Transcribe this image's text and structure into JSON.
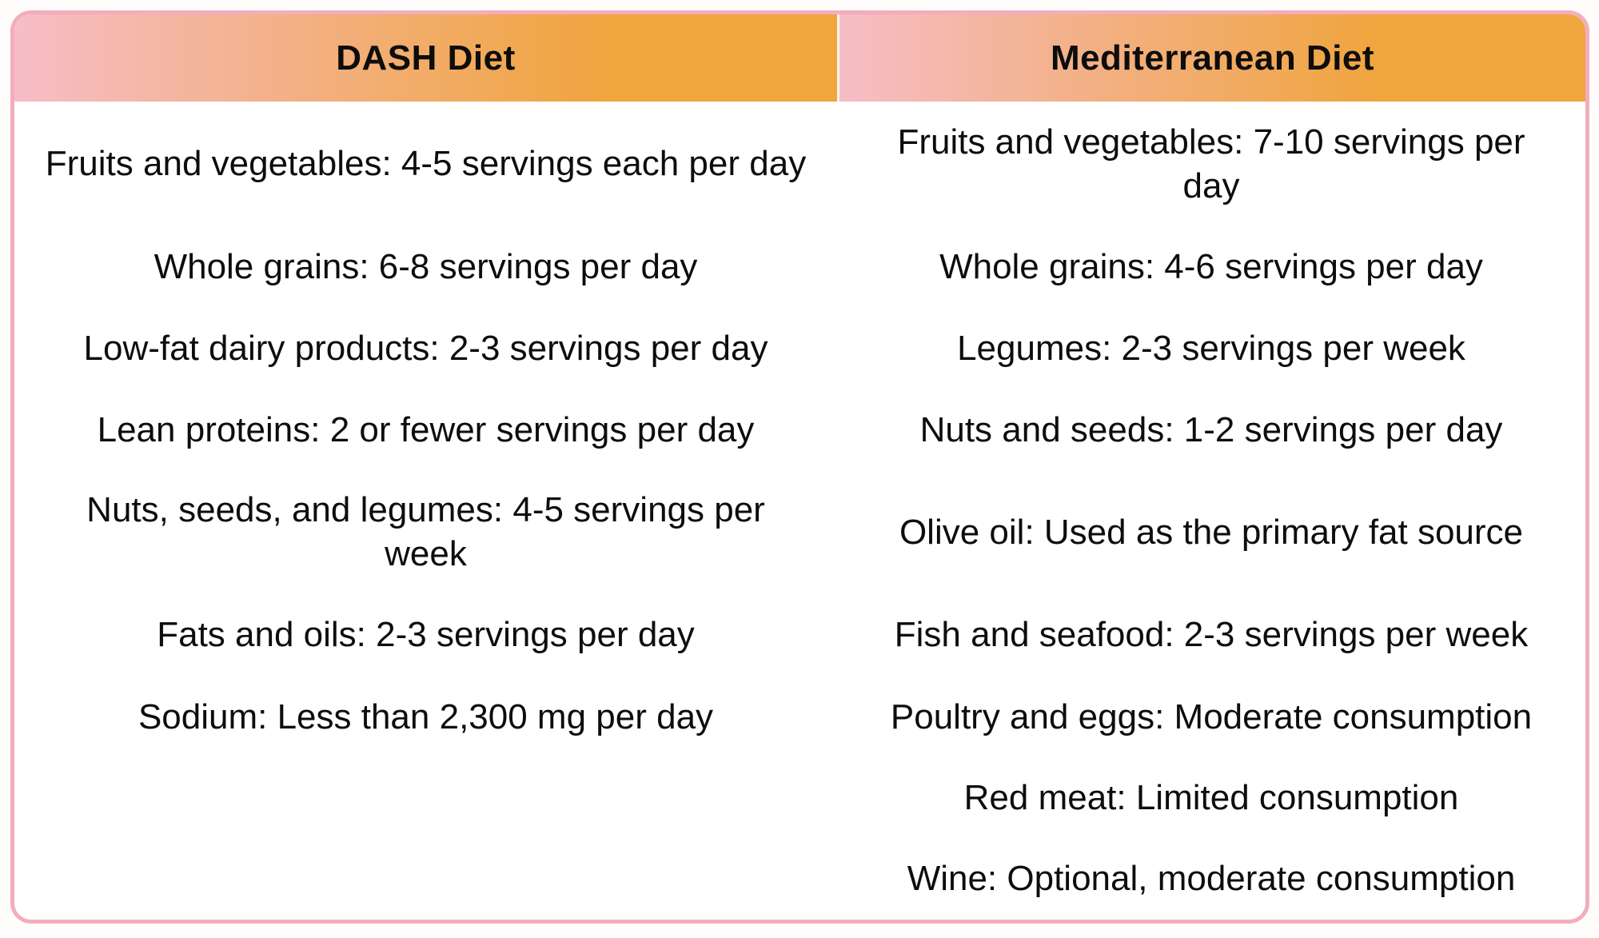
{
  "table": {
    "headers": {
      "dash": "DASH Diet",
      "med": "Mediterranean Diet"
    },
    "rows": [
      {
        "dash": "Fruits and vegetables: 4-5 servings each per day",
        "med": "Fruits and vegetables: 7-10 servings per day"
      },
      {
        "dash": "Whole grains: 6-8 servings per day",
        "med": "Whole grains: 4-6 servings per day"
      },
      {
        "dash": "Low-fat dairy products: 2-3 servings per day",
        "med": "Legumes: 2-3 servings per week"
      },
      {
        "dash": "Lean proteins: 2 or fewer servings per day",
        "med": "Nuts and seeds: 1-2 servings per day"
      },
      {
        "dash": "Nuts, seeds, and legumes: 4-5 servings per week",
        "med": "Olive oil: Used as the primary fat source"
      },
      {
        "dash": "Fats and oils: 2-3 servings per day",
        "med": "Fish and seafood: 2-3 servings per week"
      },
      {
        "dash": "Sodium: Less than 2,300 mg per day",
        "med": "Poultry and eggs: Moderate consumption"
      },
      {
        "dash": "",
        "med": "Red meat: Limited consumption"
      },
      {
        "dash": "",
        "med": "Wine: Optional, moderate consumption"
      }
    ]
  },
  "colors": {
    "header_gradient_start": "#f6bdc7",
    "header_gradient_end": "#f0a53e",
    "card_border": "#f2aebc",
    "cell_background": "#ffffff",
    "text": "#0d0d0d"
  }
}
